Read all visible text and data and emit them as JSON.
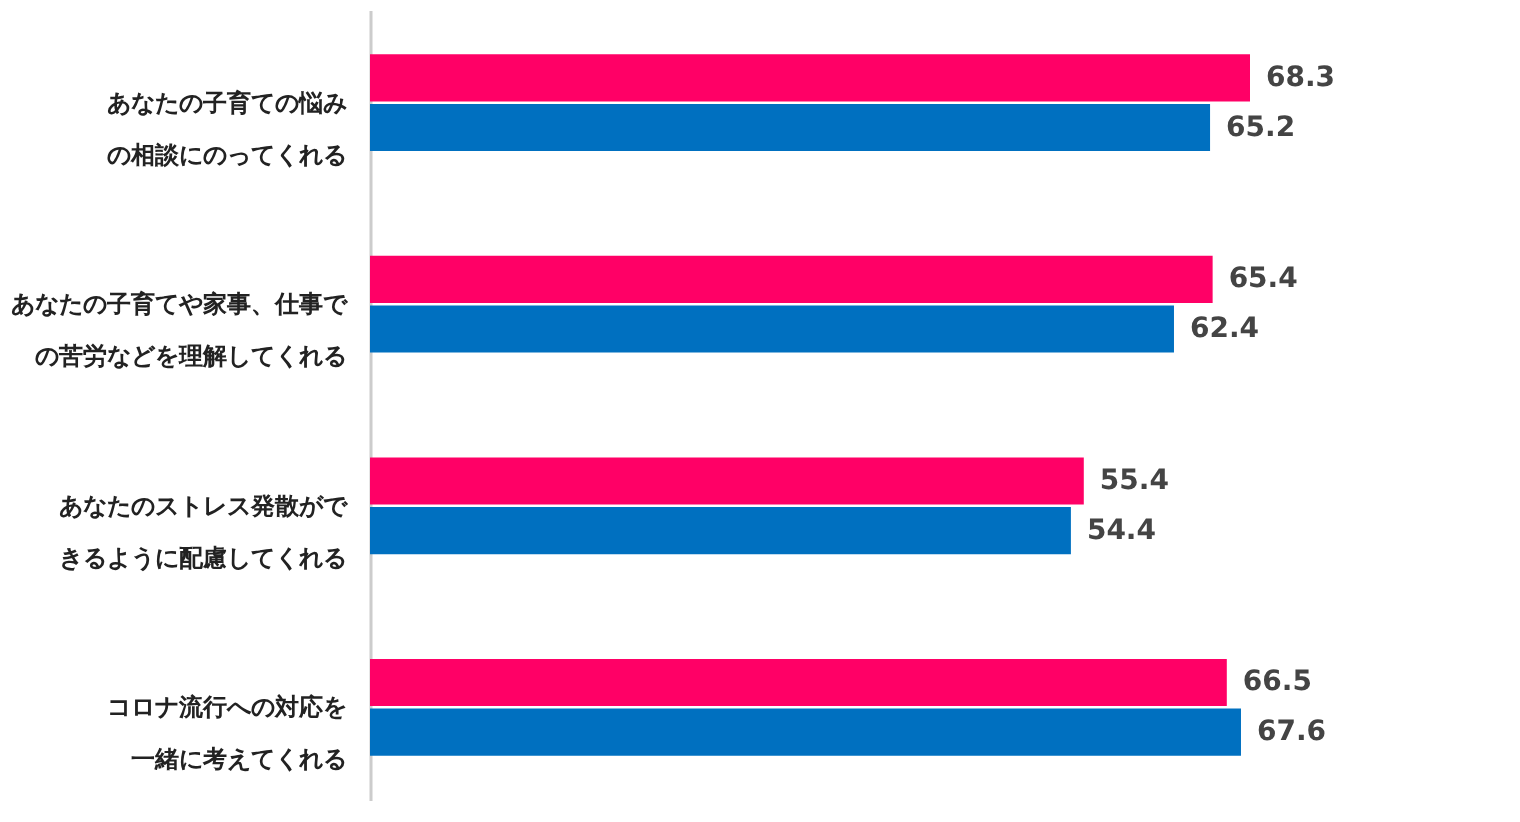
{
  "chart_data": {
    "type": "bar",
    "orientation": "horizontal",
    "data_labels": true,
    "categories": [
      "あなたの子育ての悩みの相談にのってくれる",
      "あなたの子育てや家事、仕事での苦労などを理解してくれる",
      "あなたのストレス発散ができるように配慮してくれる",
      "コロナ流行への対応を一緒に考えてくれる"
    ],
    "series": [
      {
        "color": "#ff0066",
        "values": [
          68.3,
          65.4,
          55.4,
          66.5
        ]
      },
      {
        "color": "#0070c0",
        "values": [
          65.2,
          62.4,
          54.4,
          67.6
        ]
      }
    ]
  }
}
